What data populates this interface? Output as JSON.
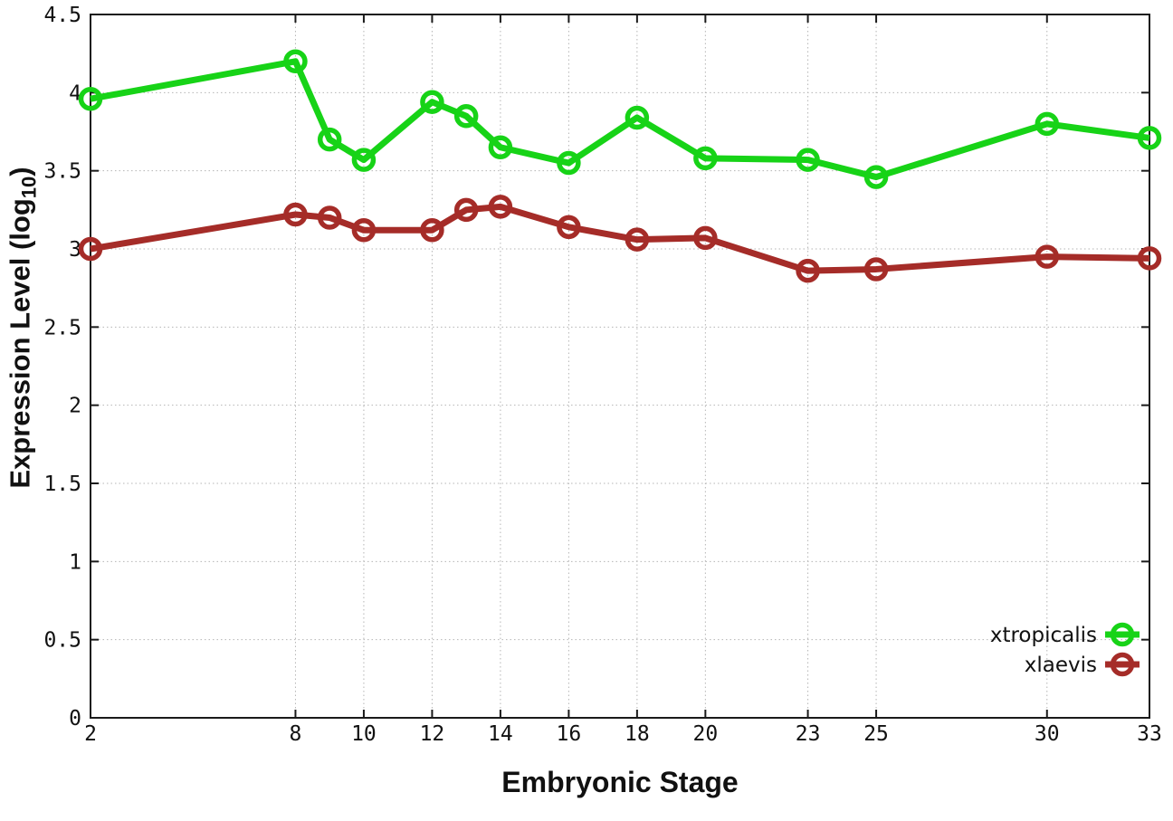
{
  "figure": {
    "background": "#ffffff",
    "axis_color": "#1a1a1a",
    "grid_color": "#b5b5b5",
    "text_color": "#111111"
  },
  "chart_data": {
    "type": "line",
    "title": "",
    "xlabel": "Embryonic Stage",
    "ylabel": {
      "prefix": "Expression Level (log",
      "sub": "10",
      "suffix": ")"
    },
    "x": [
      2,
      8,
      9,
      10,
      12,
      13,
      14,
      16,
      18,
      20,
      23,
      25,
      30,
      33
    ],
    "series": [
      {
        "name": "xtropicalis",
        "color": "#17d317",
        "marker": "open-circle",
        "values": [
          3.96,
          4.2,
          3.7,
          3.57,
          3.94,
          3.85,
          3.65,
          3.55,
          3.84,
          3.58,
          3.57,
          3.46,
          3.8,
          3.71
        ]
      },
      {
        "name": "xlaevis",
        "color": "#a52c28",
        "marker": "open-circle",
        "values": [
          3.0,
          3.22,
          3.2,
          3.12,
          3.12,
          3.25,
          3.27,
          3.14,
          3.06,
          3.07,
          2.86,
          2.87,
          2.95,
          2.94
        ]
      }
    ],
    "xlim": [
      2,
      33
    ],
    "ylim": [
      0,
      4.5
    ],
    "xticks": {
      "values": [
        2,
        8,
        10,
        12,
        14,
        16,
        18,
        20,
        23,
        25,
        30,
        33
      ],
      "labels": [
        "2",
        "8",
        "10",
        "12",
        "14",
        "16",
        "18",
        "20",
        "23",
        "25",
        "30",
        "33"
      ]
    },
    "yticks": {
      "values": [
        0,
        0.5,
        1,
        1.5,
        2,
        2.5,
        3,
        3.5,
        4,
        4.5
      ],
      "labels": [
        "0",
        "0.5",
        "1",
        "1.5",
        "2",
        "2.5",
        "3",
        "3.5",
        "4",
        "4.5"
      ]
    },
    "grid": true,
    "grid_style": "dotted",
    "border": "box",
    "legend_position": "inside-bottom-right",
    "legend_entries": [
      "xtropicalis",
      "xlaevis"
    ]
  }
}
